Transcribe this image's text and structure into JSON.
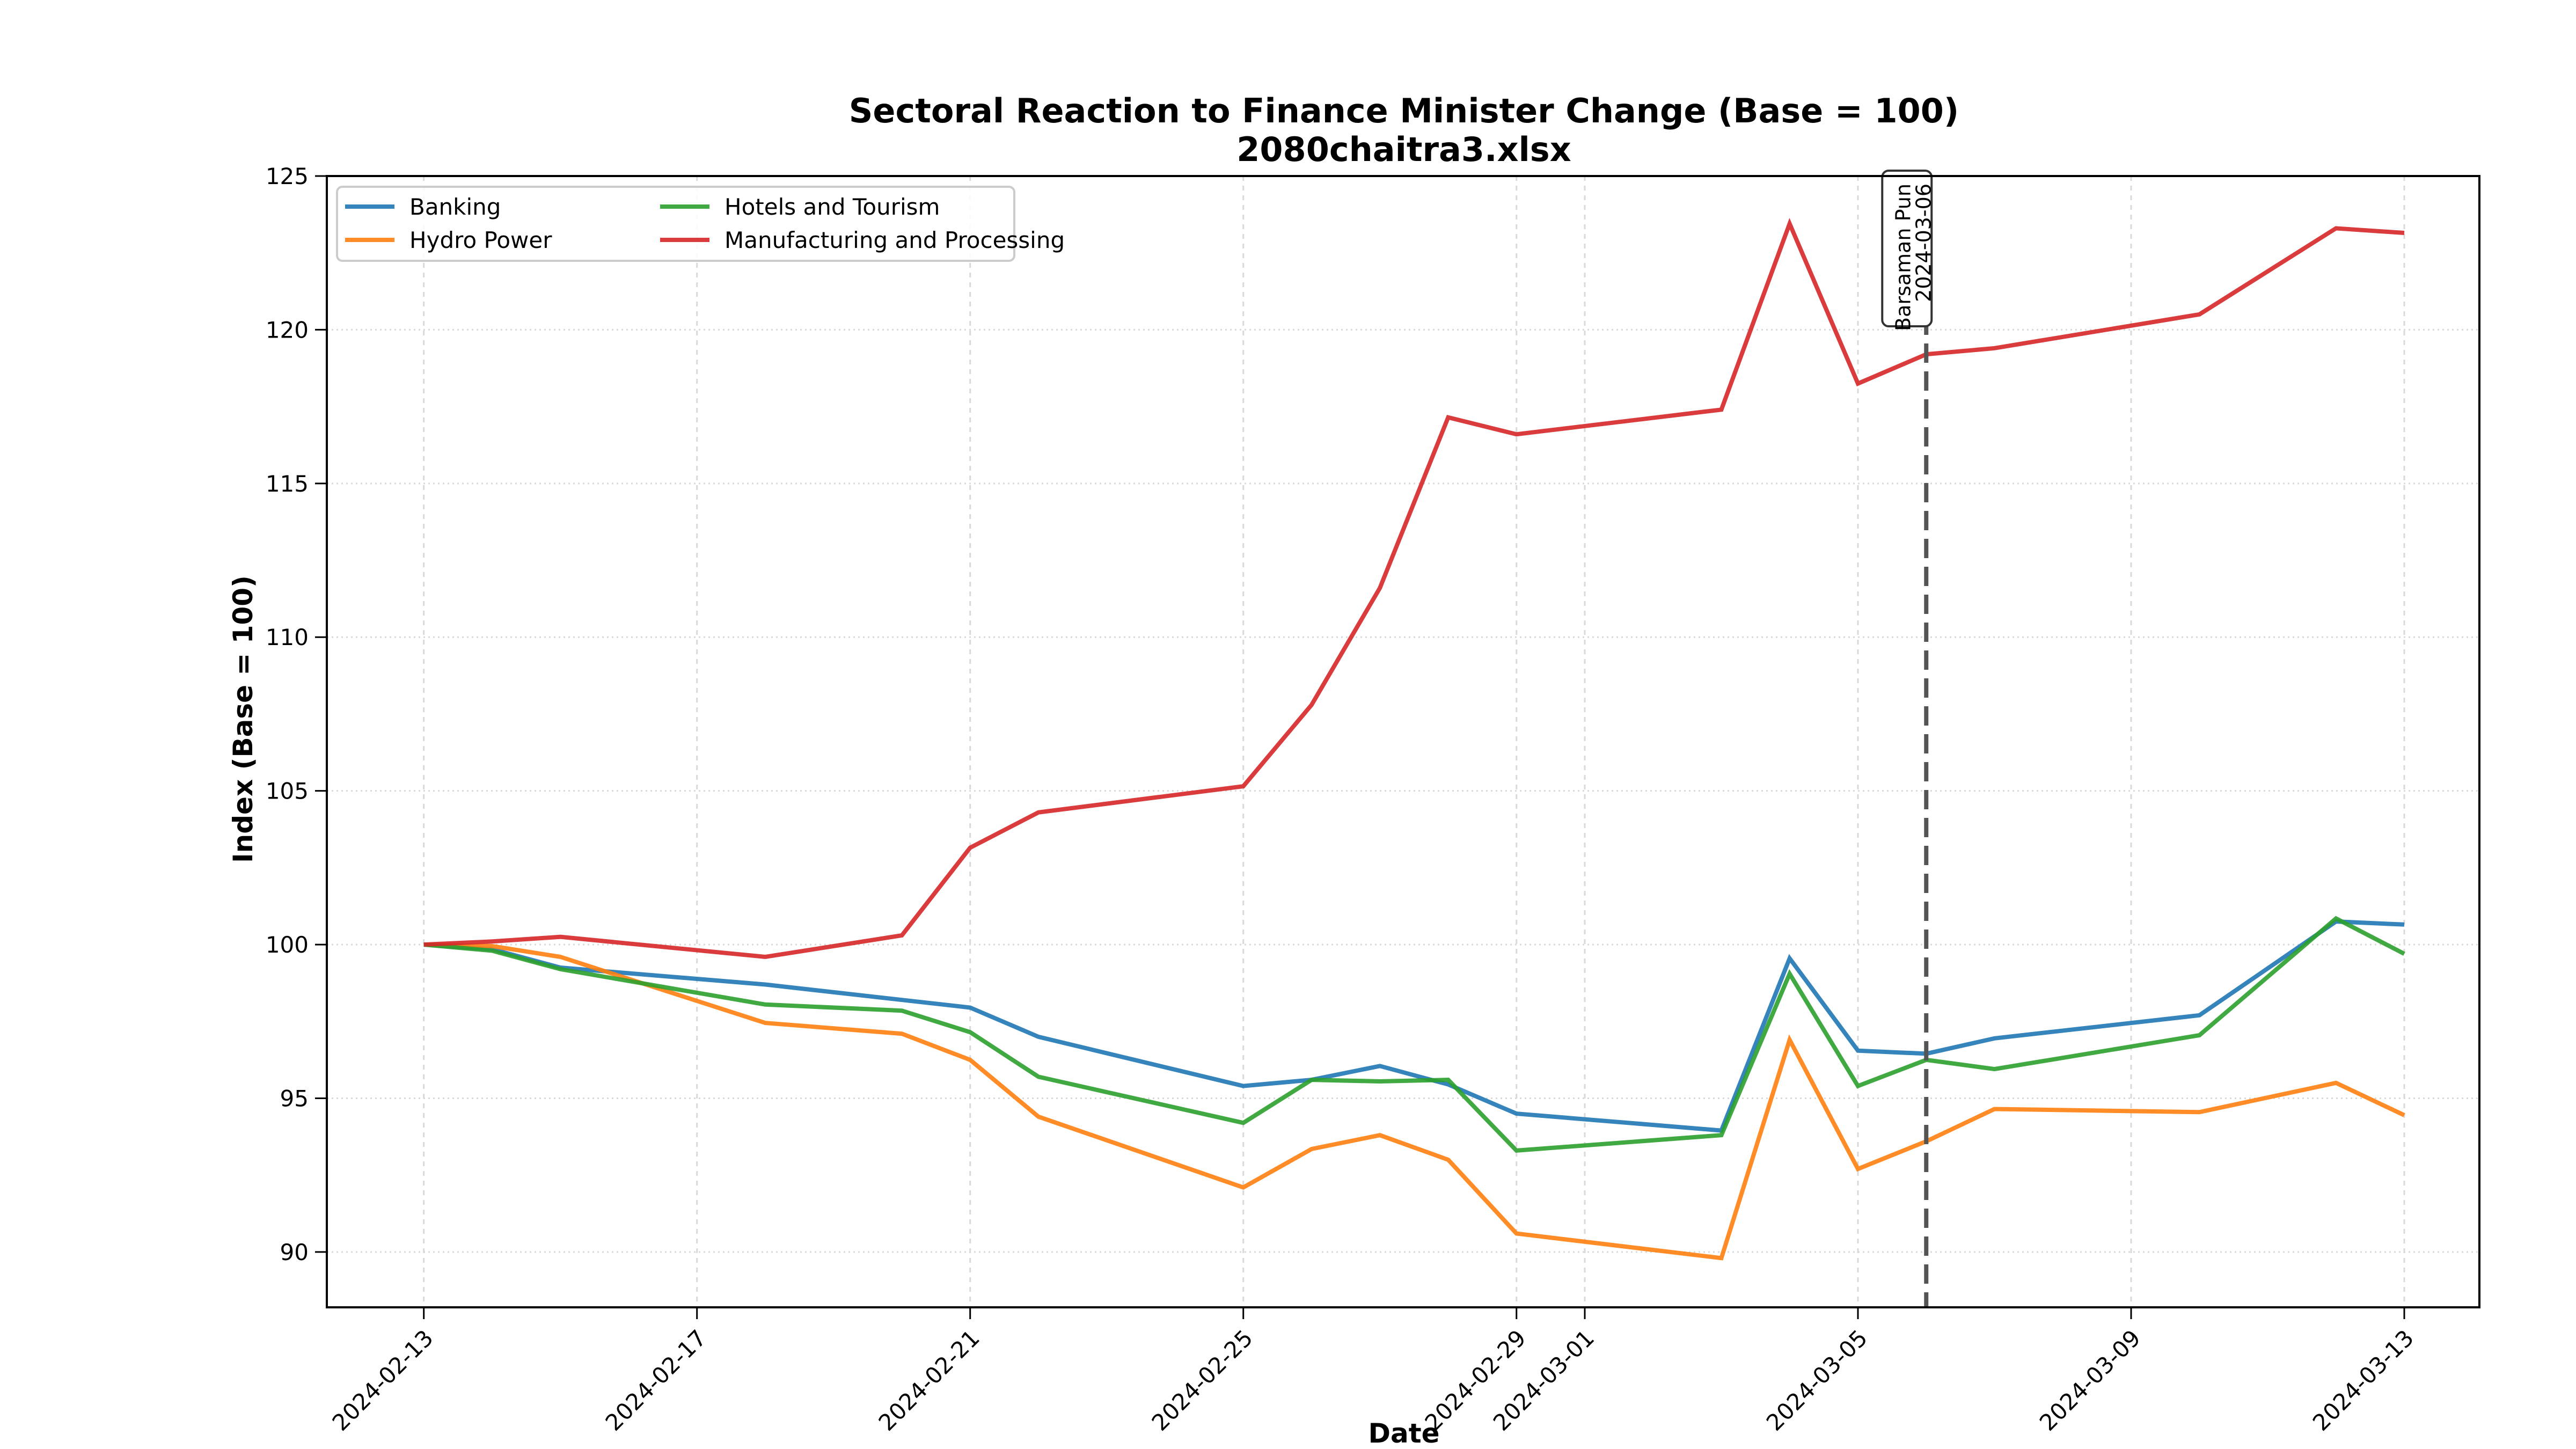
{
  "chart_data": {
    "type": "line",
    "title": "Sectoral Reaction to Finance Minister Change (Base = 100)",
    "subtitle": "2080chaitra3.xlsx",
    "xlabel": "Date",
    "ylabel": "Index (Base = 100)",
    "ylim": [
      88.2,
      125
    ],
    "xlim": [
      "2024-02-11.6",
      "2024-03-14.6"
    ],
    "grid": true,
    "legend_position": "top-left",
    "y_ticks": [
      "90",
      "95",
      "100",
      "105",
      "110",
      "115",
      "120",
      "125"
    ],
    "x_ticks": [
      "2024-02-13",
      "2024-02-17",
      "2024-02-21",
      "2024-02-25",
      "2024-02-29",
      "2024-03-01",
      "2024-03-05",
      "2024-03-09",
      "2024-03-13"
    ],
    "x": [
      "2024-02-13",
      "2024-02-14",
      "2024-02-15",
      "2024-02-18",
      "2024-02-20",
      "2024-02-21",
      "2024-02-22",
      "2024-02-25",
      "2024-02-26",
      "2024-02-27",
      "2024-02-28",
      "2024-02-29",
      "2024-03-03",
      "2024-03-04",
      "2024-03-05",
      "2024-03-06",
      "2024-03-07",
      "2024-03-10",
      "2024-03-12",
      "2024-03-13"
    ],
    "series": [
      {
        "name": "Banking",
        "color": "#1f77b4",
        "values": [
          100,
          99.85,
          99.25,
          98.7,
          98.2,
          97.95,
          97.0,
          95.4,
          95.6,
          96.05,
          95.45,
          94.5,
          93.95,
          99.55,
          96.55,
          96.45,
          96.95,
          97.7,
          100.75,
          100.65
        ]
      },
      {
        "name": "Hydro Power",
        "color": "#ff7f0e",
        "values": [
          100,
          99.95,
          99.6,
          97.45,
          97.1,
          96.25,
          94.4,
          92.1,
          93.35,
          93.8,
          93.0,
          90.6,
          89.8,
          96.9,
          92.7,
          93.6,
          94.65,
          94.55,
          95.5,
          94.45
        ]
      },
      {
        "name": "Hotels and Tourism",
        "color": "#2ca02c",
        "values": [
          100,
          99.8,
          99.2,
          98.05,
          97.85,
          97.15,
          95.7,
          94.2,
          95.6,
          95.55,
          95.6,
          93.3,
          93.8,
          99.05,
          95.4,
          96.25,
          95.95,
          97.05,
          100.85,
          99.7
        ]
      },
      {
        "name": "Manufacturing and Processing",
        "color": "#d62728",
        "values": [
          100,
          100.1,
          100.25,
          99.6,
          100.3,
          103.15,
          104.3,
          105.15,
          107.8,
          111.6,
          117.15,
          116.6,
          117.4,
          123.45,
          118.25,
          119.2,
          119.4,
          120.5,
          123.3,
          123.15
        ]
      }
    ],
    "annotations": [
      {
        "type": "vline",
        "x": "2024-03-06",
        "style": "dashed",
        "color": "#555555",
        "label_line1": "Barsaman Pun",
        "label_line2": "2024-03-06"
      }
    ]
  }
}
